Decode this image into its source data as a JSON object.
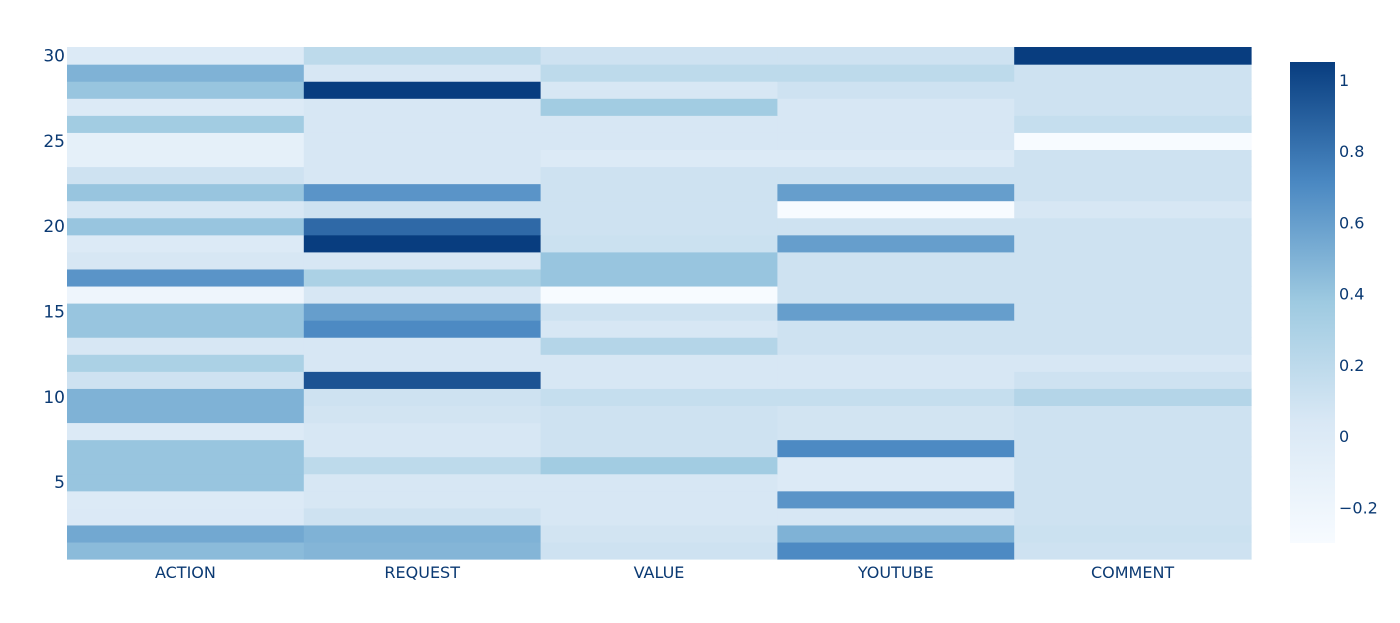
{
  "chart_data": {
    "type": "heatmap",
    "title": "",
    "xlabel": "",
    "ylabel": "",
    "x_categories": [
      "ACTION",
      "REQUEST",
      "VALUE",
      "YOUTUBE",
      "COMMENT"
    ],
    "y": [
      1,
      2,
      3,
      4,
      5,
      6,
      7,
      8,
      9,
      10,
      11,
      12,
      13,
      14,
      15,
      16,
      17,
      18,
      19,
      20,
      21,
      22,
      23,
      24,
      25,
      26,
      27,
      28,
      29,
      30
    ],
    "y_tick_values": [
      5,
      10,
      15,
      20,
      25,
      30
    ],
    "y_tick_labels": [
      "5",
      "10",
      "15",
      "20",
      "25",
      "30"
    ],
    "z": [
      [
        0.45,
        0.48,
        0.1,
        0.7,
        0.1
      ],
      [
        0.55,
        0.5,
        0.08,
        0.5,
        0.12
      ],
      [
        0.02,
        0.1,
        0.05,
        0.05,
        0.1
      ],
      [
        0.0,
        0.05,
        0.05,
        0.65,
        0.1
      ],
      [
        0.4,
        0.05,
        0.05,
        0.0,
        0.1
      ],
      [
        0.4,
        0.2,
        0.35,
        0.0,
        0.1
      ],
      [
        0.4,
        0.05,
        0.1,
        0.7,
        0.1
      ],
      [
        0.0,
        0.05,
        0.1,
        0.08,
        0.1
      ],
      [
        0.5,
        0.08,
        0.1,
        0.08,
        0.1
      ],
      [
        0.5,
        0.1,
        0.15,
        0.15,
        0.25
      ],
      [
        0.1,
        0.95,
        0.05,
        0.05,
        0.1
      ],
      [
        0.3,
        0.05,
        0.05,
        0.05,
        0.05
      ],
      [
        0.05,
        0.05,
        0.25,
        0.1,
        0.1
      ],
      [
        0.4,
        0.7,
        0.05,
        0.1,
        0.1
      ],
      [
        0.4,
        0.6,
        0.1,
        0.6,
        0.1
      ],
      [
        -0.2,
        0.05,
        -0.3,
        0.1,
        0.1
      ],
      [
        0.65,
        0.3,
        0.4,
        0.1,
        0.1
      ],
      [
        0.05,
        0.05,
        0.4,
        0.1,
        0.1
      ],
      [
        0.0,
        1.05,
        0.12,
        0.6,
        0.1
      ],
      [
        0.4,
        0.85,
        0.1,
        0.1,
        0.1
      ],
      [
        0.05,
        0.1,
        0.1,
        -0.3,
        0.05
      ],
      [
        0.4,
        0.65,
        0.1,
        0.6,
        0.1
      ],
      [
        0.1,
        0.05,
        0.1,
        0.1,
        0.1
      ],
      [
        -0.1,
        0.05,
        0.0,
        0.0,
        0.1
      ],
      [
        -0.1,
        0.05,
        0.05,
        0.05,
        -0.3
      ],
      [
        0.35,
        0.05,
        0.05,
        0.05,
        0.15
      ],
      [
        0.0,
        0.05,
        0.35,
        0.05,
        0.1
      ],
      [
        0.4,
        1.05,
        0.05,
        0.1,
        0.1
      ],
      [
        0.5,
        0.05,
        0.2,
        0.2,
        0.1
      ],
      [
        0.0,
        0.2,
        0.1,
        0.1,
        1.05
      ]
    ],
    "zmin": -0.3,
    "zmax": 1.05,
    "colorscale": [
      [
        0.0,
        "#f7fbff"
      ],
      [
        0.25,
        "#d9e8f5"
      ],
      [
        0.5,
        "#9ecae1"
      ],
      [
        0.75,
        "#4a88c2"
      ],
      [
        1.0,
        "#083d7f"
      ]
    ],
    "colorbar": {
      "tick_values": [
        -0.2,
        0,
        0.2,
        0.4,
        0.6,
        0.8,
        1
      ],
      "tick_labels": [
        "−0.2",
        "0",
        "0.2",
        "0.4",
        "0.6",
        "0.8",
        "1"
      ],
      "placement": "right"
    },
    "grid": false
  }
}
